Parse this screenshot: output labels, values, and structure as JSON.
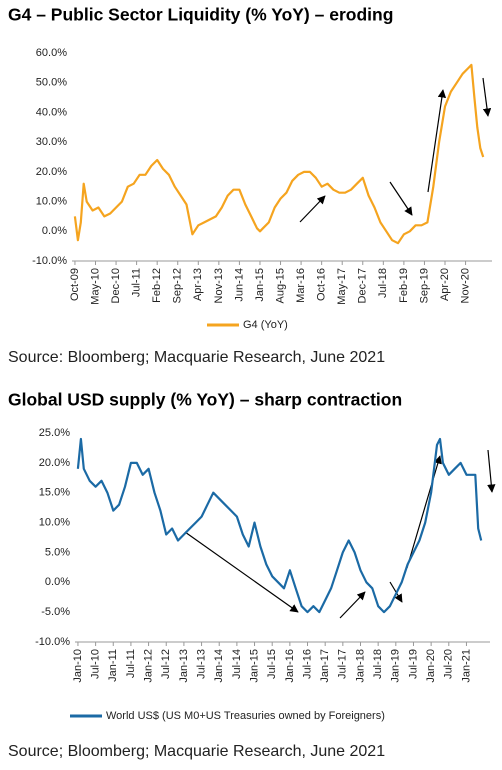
{
  "chart_data": [
    {
      "type": "line",
      "title": "G4 – Public Sector Liquidity (% YoY) – eroding",
      "source": "Source: Bloomberg; Macquarie Research, June 2021",
      "x": [
        "Oct-09",
        "Nov-09",
        "Dec-09",
        "Jan-10",
        "Feb-10",
        "Apr-10",
        "Jun-10",
        "Aug-10",
        "Oct-10",
        "Dec-10",
        "Feb-11",
        "Apr-11",
        "Jun-11",
        "Aug-11",
        "Oct-11",
        "Dec-11",
        "Feb-12",
        "Apr-12",
        "Jun-12",
        "Aug-12",
        "Oct-12",
        "Dec-12",
        "Feb-13",
        "Apr-13",
        "Jun-13",
        "Aug-13",
        "Oct-13",
        "Dec-13",
        "Feb-14",
        "Apr-14",
        "Jun-14",
        "Aug-14",
        "Oct-14",
        "Dec-14",
        "Jan-15",
        "Feb-15",
        "Apr-15",
        "Jun-15",
        "Aug-15",
        "Oct-15",
        "Dec-15",
        "Feb-16",
        "Apr-16",
        "Jun-16",
        "Aug-16",
        "Oct-16",
        "Dec-16",
        "Feb-17",
        "Apr-17",
        "Jun-17",
        "Aug-17",
        "Oct-17",
        "Dec-17",
        "Feb-18",
        "Apr-18",
        "Jun-18",
        "Aug-18",
        "Oct-18",
        "Dec-18",
        "Feb-19",
        "Apr-19",
        "Jun-19",
        "Aug-19",
        "Oct-19",
        "Dec-19",
        "Feb-20",
        "Apr-20",
        "Jun-20",
        "Aug-20",
        "Oct-20",
        "Dec-20",
        "Jan-21",
        "Feb-21",
        "Mar-21",
        "Apr-21",
        "May-21"
      ],
      "series": [
        {
          "name": "G4 (YoY)",
          "color": "#f5a41f",
          "values": [
            5,
            -3,
            3,
            16,
            10,
            7,
            8,
            5,
            6,
            8,
            10,
            15,
            16,
            19,
            19,
            22,
            24,
            21,
            19,
            15,
            12,
            9,
            -1,
            2,
            3,
            4,
            5,
            8,
            12,
            14,
            14,
            9,
            5,
            1,
            0,
            1,
            3,
            8,
            11,
            13,
            17,
            19,
            20,
            20,
            18,
            15,
            16,
            14,
            13,
            13,
            14,
            16,
            18,
            12,
            8,
            3,
            0,
            -3,
            -4,
            -1,
            0,
            2,
            2,
            3,
            15,
            30,
            42,
            47,
            50,
            53,
            55,
            56,
            45,
            35,
            28,
            25
          ]
        }
      ],
      "xlim": [
        "Sep-09",
        "Aug-21"
      ],
      "xticks": [
        "Oct-09",
        "May-10",
        "Dec-10",
        "Jul-11",
        "Feb-12",
        "Sep-12",
        "Apr-13",
        "Nov-13",
        "Jun-14",
        "Jan-15",
        "Aug-15",
        "Mar-16",
        "Oct-16",
        "May-17",
        "Dec-17",
        "Jul-18",
        "Feb-19",
        "Sep-19",
        "Apr-20",
        "Nov-20"
      ],
      "ylim": [
        -10,
        60
      ],
      "yticks": [
        {
          "value": -10,
          "label": "-10.0%"
        },
        {
          "value": 0,
          "label": "0.0%"
        },
        {
          "value": 10,
          "label": "10.0%"
        },
        {
          "value": 20,
          "label": "20.0%"
        },
        {
          "value": 30,
          "label": "30.0%"
        },
        {
          "value": 40,
          "label": "40.0%"
        },
        {
          "value": 50,
          "label": "50.0%"
        },
        {
          "value": 60,
          "label": "60.0%"
        }
      ]
    },
    {
      "type": "line",
      "title": "Global USD supply (% YoY) – sharp contraction",
      "source": "Source; Bloomberg; Macquarie Research, June 2021",
      "x": [
        "Jan-10",
        "Feb-10",
        "Mar-10",
        "May-10",
        "Jul-10",
        "Sep-10",
        "Nov-10",
        "Jan-11",
        "Mar-11",
        "May-11",
        "Jul-11",
        "Sep-11",
        "Nov-11",
        "Jan-12",
        "Mar-12",
        "May-12",
        "Jul-12",
        "Sep-12",
        "Nov-12",
        "Jan-13",
        "Mar-13",
        "May-13",
        "Jul-13",
        "Sep-13",
        "Nov-13",
        "Jan-14",
        "Mar-14",
        "May-14",
        "Jul-14",
        "Sep-14",
        "Nov-14",
        "Jan-15",
        "Mar-15",
        "May-15",
        "Jul-15",
        "Sep-15",
        "Nov-15",
        "Jan-16",
        "Mar-16",
        "May-16",
        "Jul-16",
        "Sep-16",
        "Nov-16",
        "Jan-17",
        "Mar-17",
        "May-17",
        "Jul-17",
        "Sep-17",
        "Nov-17",
        "Jan-18",
        "Mar-18",
        "May-18",
        "Jul-18",
        "Sep-18",
        "Nov-18",
        "Jan-19",
        "Mar-19",
        "May-19",
        "Jul-19",
        "Sep-19",
        "Nov-19",
        "Jan-20",
        "Mar-20",
        "Apr-20",
        "May-20",
        "Jul-20",
        "Sep-20",
        "Nov-20",
        "Jan-21",
        "Mar-21",
        "Apr-21",
        "May-21",
        "Jun-21"
      ],
      "series": [
        {
          "name": "World US$ (US M0+US Treasuries owned by Foreigners)",
          "color": "#1b6aa5",
          "values": [
            19,
            24,
            19,
            17,
            16,
            17,
            15,
            12,
            13,
            16,
            20,
            20,
            18,
            19,
            15,
            12,
            8,
            9,
            7,
            8,
            9,
            10,
            11,
            13,
            15,
            14,
            13,
            12,
            11,
            8,
            6,
            10,
            6,
            3,
            1,
            0,
            -1,
            2,
            -1,
            -4,
            -5,
            -4,
            -5,
            -3,
            -1,
            2,
            5,
            7,
            5,
            2,
            0,
            -1,
            -4,
            -5,
            -4,
            -2,
            0,
            3,
            5,
            7,
            10,
            15,
            23,
            24,
            20,
            18,
            19,
            20,
            18,
            18,
            18,
            9,
            7
          ]
        }
      ],
      "xlim": [
        "Dec-09",
        "Sep-21"
      ],
      "xticks": [
        "Jan-10",
        "Jul-10",
        "Jan-11",
        "Jul-11",
        "Jan-12",
        "Jul-12",
        "Jan-13",
        "Jul-13",
        "Jan-14",
        "Jul-14",
        "Jan-15",
        "Jul-15",
        "Jan-16",
        "Jul-16",
        "Jan-17",
        "Jul-17",
        "Jan-18",
        "Jul-18",
        "Jan-19",
        "Jul-19",
        "Jan-20",
        "Jul-20",
        "Jan-21"
      ],
      "ylim": [
        -10,
        25
      ],
      "yticks": [
        {
          "value": -10,
          "label": "-10.0%"
        },
        {
          "value": -5,
          "label": "-5.0%"
        },
        {
          "value": 0,
          "label": "0.0%"
        },
        {
          "value": 5,
          "label": "5.0%"
        },
        {
          "value": 10,
          "label": "10.0%"
        },
        {
          "value": 15,
          "label": "15.0%"
        },
        {
          "value": 20,
          "label": "20.0%"
        },
        {
          "value": 25,
          "label": "25.0%"
        }
      ]
    }
  ]
}
